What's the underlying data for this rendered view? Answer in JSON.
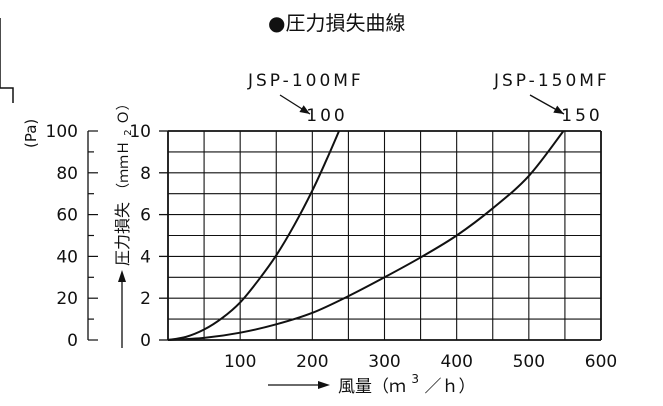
{
  "chart_data": {
    "type": "line",
    "title": "●圧力損失曲線",
    "xlabel": "風量（ｍ３／ｈ）",
    "x_axis_text": "風量（ｍ",
    "x_axis_sup": "3",
    "x_axis_tail": "／ｈ）",
    "ylabel": "圧力損失（ｍｍＨ２Ｏ）",
    "y_axis_kanji": "圧力損失",
    "y_axis_unit": "（ｍｍＨ",
    "y_axis_sub": "2",
    "y_axis_tail": "Ｏ）",
    "y2label": "(Pa)",
    "xlim": [
      0,
      600
    ],
    "ylim": [
      0,
      10
    ],
    "x_ticks": [
      "100",
      "200",
      "300",
      "400",
      "500",
      "600"
    ],
    "x_tick_values": [
      100,
      200,
      300,
      400,
      500,
      600
    ],
    "y_ticks": [
      "0",
      "2",
      "4",
      "6",
      "8",
      "10"
    ],
    "y_tick_values": [
      0,
      2,
      4,
      6,
      8,
      10
    ],
    "pa_ticks": [
      "0",
      "20",
      "40",
      "60",
      "80",
      "100"
    ],
    "grid": true,
    "series": [
      {
        "name": "JSP-100MF",
        "end_label": "100",
        "x": [
          0,
          25,
          50,
          75,
          100,
          125,
          150,
          175,
          200,
          220,
          237
        ],
        "y": [
          0,
          0.15,
          0.5,
          1.05,
          1.8,
          2.85,
          4.05,
          5.5,
          7.15,
          8.65,
          10
        ]
      },
      {
        "name": "JSP-150MF",
        "end_label": "150",
        "x": [
          0,
          50,
          100,
          150,
          200,
          250,
          300,
          350,
          400,
          450,
          500,
          548
        ],
        "y": [
          0,
          0.1,
          0.35,
          0.75,
          1.3,
          2.1,
          3.0,
          3.95,
          5.0,
          6.3,
          7.85,
          10
        ]
      }
    ]
  }
}
